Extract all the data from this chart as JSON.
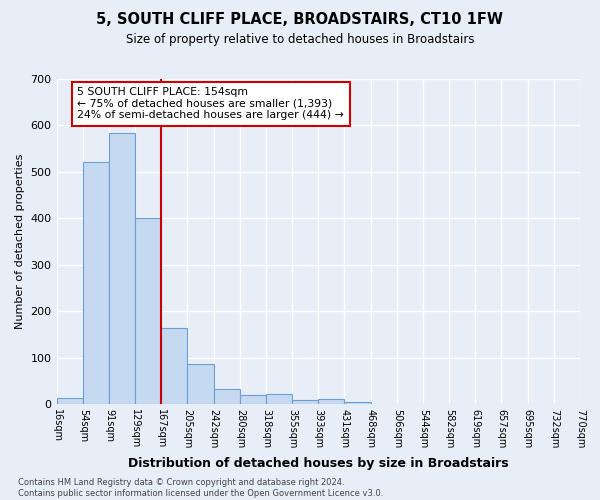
{
  "title": "5, SOUTH CLIFF PLACE, BROADSTAIRS, CT10 1FW",
  "subtitle": "Size of property relative to detached houses in Broadstairs",
  "xlabel": "Distribution of detached houses by size in Broadstairs",
  "ylabel": "Number of detached properties",
  "bar_values": [
    13,
    522,
    583,
    401,
    165,
    88,
    33,
    20,
    22,
    10,
    12,
    5,
    0,
    0,
    0,
    0,
    0,
    0,
    0,
    0
  ],
  "bar_labels": [
    "16sqm",
    "54sqm",
    "91sqm",
    "129sqm",
    "167sqm",
    "205sqm",
    "242sqm",
    "280sqm",
    "318sqm",
    "355sqm",
    "393sqm",
    "431sqm",
    "468sqm",
    "506sqm",
    "544sqm",
    "582sqm",
    "619sqm",
    "657sqm",
    "695sqm",
    "732sqm",
    "770sqm"
  ],
  "bar_color": "#c5d9f0",
  "bar_edge_color": "#6b9fd4",
  "vline_color": "#cc0000",
  "annotation_text": "5 SOUTH CLIFF PLACE: 154sqm\n← 75% of detached houses are smaller (1,393)\n24% of semi-detached houses are larger (444) →",
  "annotation_box_color": "#ffffff",
  "annotation_box_edge": "#cc0000",
  "ylim": [
    0,
    700
  ],
  "yticks": [
    0,
    100,
    200,
    300,
    400,
    500,
    600,
    700
  ],
  "footer": "Contains HM Land Registry data © Crown copyright and database right 2024.\nContains public sector information licensed under the Open Government Licence v3.0.",
  "bg_color": "#e8eef7",
  "plot_bg_color": "#e8eef7",
  "grid_color": "#ffffff"
}
